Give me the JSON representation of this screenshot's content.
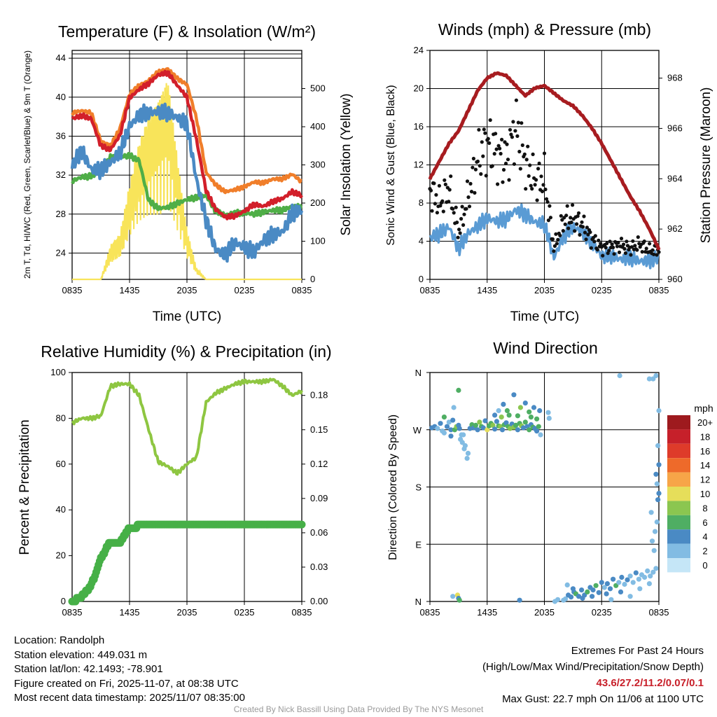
{
  "chart_data": [
    {
      "type": "line",
      "title": "Temperature (F) & Insolation (W/m²)",
      "xlabel": "Time (UTC)",
      "ylabel": "2m T, Td, HI/WC (Red, Green, Scarlet/Blue) & 9m T (Orange)",
      "y2label": "Solar Insolation (Yellow)",
      "x_ticks": [
        "0835",
        "1435",
        "2035",
        "0235",
        "0835"
      ],
      "y_ticks": [
        24,
        28,
        32,
        36,
        40,
        44
      ],
      "y2_ticks": [
        0,
        100,
        200,
        300,
        400,
        500
      ],
      "ylim": [
        21.3,
        44.8
      ],
      "y2lim": [
        0,
        600
      ],
      "x_hours": [
        0,
        1,
        2,
        3,
        4,
        5,
        6,
        7,
        8,
        9,
        10,
        11,
        12,
        13,
        14,
        15,
        16,
        17,
        18,
        19,
        20,
        21,
        22,
        23,
        24
      ],
      "series": [
        {
          "name": "2m T",
          "axis": "left",
          "color": "#d21f2a",
          "values": [
            37.8,
            38.1,
            37.8,
            35.0,
            34.6,
            36.1,
            39.9,
            40.8,
            41.4,
            42.3,
            42.5,
            41.2,
            40.0,
            35.6,
            30.4,
            28.5,
            27.7,
            27.8,
            28.3,
            29.0,
            28.8,
            29.3,
            29.6,
            30.3,
            29.9
          ]
        },
        {
          "name": "9m T",
          "axis": "left",
          "color": "#f07e2a",
          "values": [
            38.4,
            38.6,
            38.4,
            35.5,
            35.0,
            36.8,
            40.3,
            41.2,
            41.7,
            42.6,
            42.9,
            41.9,
            41.3,
            37.8,
            32.3,
            31.0,
            30.3,
            30.5,
            30.8,
            31.3,
            31.2,
            31.6,
            31.6,
            32.1,
            31.3
          ]
        },
        {
          "name": "HI/WC",
          "axis": "left",
          "color": "#4a8ac4",
          "values": [
            33.0,
            34.5,
            32.6,
            32.5,
            33.3,
            34.3,
            37.0,
            38.2,
            38.4,
            38.5,
            38.4,
            37.9,
            37.2,
            31.5,
            27.4,
            24.4,
            23.8,
            25.1,
            24.6,
            24.1,
            25.3,
            25.9,
            26.2,
            28.1,
            28.4
          ]
        },
        {
          "name": "Td",
          "axis": "left",
          "color": "#4fae47",
          "values": [
            31.4,
            31.8,
            31.9,
            32.5,
            33.8,
            33.9,
            34.0,
            33.5,
            29.4,
            28.6,
            28.7,
            29.1,
            29.5,
            29.7,
            29.9,
            28.3,
            27.9,
            28.1,
            28.1,
            28.0,
            28.2,
            28.4,
            28.4,
            28.8,
            28.7
          ]
        },
        {
          "name": "Solar Insolation",
          "axis": "right",
          "color": "#f8e45a",
          "values": [
            0,
            0,
            0,
            0,
            90,
            120,
            250,
            360,
            430,
            470,
            530,
            320,
            130,
            30,
            0,
            0,
            0,
            0,
            0,
            0,
            0,
            0,
            0,
            0,
            0
          ]
        }
      ]
    },
    {
      "type": "line",
      "title": "Winds (mph) & Pressure (mb)",
      "xlabel": "Time (UTC)",
      "ylabel": "Sonic Wind & Gust (Blue, Black)",
      "y2label": "Station Pressure (Maroon)",
      "x_ticks": [
        "0835",
        "1435",
        "2035",
        "0235",
        "0835"
      ],
      "y_ticks": [
        0,
        4,
        8,
        12,
        16,
        20,
        24
      ],
      "y2_ticks": [
        960,
        962,
        964,
        966,
        968
      ],
      "ylim": [
        0,
        24
      ],
      "y2lim": [
        960,
        969.1
      ],
      "x_hours": [
        0,
        1,
        2,
        3,
        4,
        5,
        6,
        7,
        8,
        9,
        10,
        11,
        12,
        13,
        14,
        15,
        16,
        17,
        18,
        19,
        20,
        21,
        22,
        23,
        24
      ],
      "series": [
        {
          "name": "Pressure",
          "axis": "right",
          "color": "#a71c20",
          "values": [
            964.0,
            964.7,
            965.4,
            965.9,
            966.7,
            967.5,
            968.0,
            968.2,
            968.1,
            967.7,
            967.3,
            967.6,
            967.7,
            967.4,
            967.1,
            966.9,
            966.5,
            966.0,
            965.4,
            964.7,
            964.0,
            963.3,
            962.7,
            962.0,
            961.2
          ]
        },
        {
          "name": "Sonic Wind",
          "axis": "left",
          "color": "#5a9bd4",
          "values": [
            4.4,
            4.8,
            5.5,
            3.2,
            4.8,
            5.6,
            6.4,
            6.1,
            6.3,
            7.3,
            6.8,
            6.0,
            5.8,
            2.3,
            4.5,
            5.5,
            5.0,
            3.8,
            2.4,
            2.5,
            2.1,
            2.3,
            1.9,
            2.0,
            2.3
          ]
        },
        {
          "name": "Gust",
          "axis": "left",
          "color": "#111111",
          "values": [
            9.5,
            7.9,
            9.6,
            4.9,
            8.6,
            12.6,
            14.4,
            13.3,
            12.4,
            16.2,
            12.3,
            10.3,
            10.6,
            3.2,
            6.3,
            6.4,
            5.7,
            4.2,
            3.3,
            3.4,
            3.6,
            3.2,
            3.7,
            3.0,
            3.1
          ]
        }
      ]
    },
    {
      "type": "line",
      "title": "Relative Humidity (%) & Precipitation (in)",
      "xlabel": "",
      "ylabel": "Percent & Precipitation",
      "x_ticks": [
        "0835",
        "1435",
        "2035",
        "0235",
        "0835"
      ],
      "y_ticks": [
        0,
        20,
        40,
        60,
        80,
        100
      ],
      "y2_ticks": [
        "0.00",
        "0.03",
        "0.06",
        "0.09",
        "0.12",
        "0.15",
        "0.18"
      ],
      "ylim": [
        0,
        100
      ],
      "y2lim": [
        0,
        0.2
      ],
      "x_hours": [
        0,
        1,
        2,
        3,
        4,
        5,
        6,
        7,
        8,
        9,
        10,
        11,
        12,
        13,
        14,
        15,
        16,
        17,
        18,
        19,
        20,
        21,
        22,
        23,
        24
      ],
      "series": [
        {
          "name": "Relative Humidity",
          "axis": "left",
          "color": "#8ec641",
          "values": [
            78,
            80,
            80,
            81,
            94,
            95,
            95,
            90,
            75,
            61,
            59,
            56,
            60,
            63,
            87,
            91,
            93,
            95,
            96,
            96,
            96,
            97,
            94,
            90,
            92
          ]
        },
        {
          "name": "Precipitation (scaled to % axis)",
          "axis": "left",
          "color": "#46b047",
          "values": [
            0,
            2,
            7,
            19,
            26,
            26,
            32,
            33,
            33,
            33,
            33,
            33,
            33,
            33,
            33,
            33,
            33,
            33,
            33,
            33,
            33,
            33,
            33,
            33,
            33
          ]
        }
      ]
    },
    {
      "type": "scatter",
      "title": "Wind Direction",
      "xlabel": "",
      "ylabel": "Direction (Colored By Speed)",
      "x_ticks": [
        "0835",
        "1435",
        "2035",
        "0235",
        "0835"
      ],
      "y_ticks": [
        "N",
        "E",
        "S",
        "W",
        "N"
      ],
      "ylim": [
        0,
        360
      ],
      "colorbar": {
        "title": "mph",
        "labels": [
          "20+",
          "18",
          "16",
          "14",
          "12",
          "10",
          "8",
          "6",
          "4",
          "2",
          "0"
        ],
        "colors": [
          "#9e1a1e",
          "#c6202a",
          "#de3b2a",
          "#ee6a2a",
          "#f7a548",
          "#e6de5a",
          "#8bc650",
          "#4fae63",
          "#4a8ac4",
          "#82bce3",
          "#c5e6f7"
        ]
      },
      "points": [
        [
          0.2,
          273,
          3
        ],
        [
          0.5,
          275,
          4
        ],
        [
          0.8,
          272,
          2
        ],
        [
          1.1,
          280,
          3
        ],
        [
          1.3,
          268,
          2
        ],
        [
          1.5,
          290,
          5
        ],
        [
          1.8,
          275,
          3
        ],
        [
          2.0,
          282,
          2
        ],
        [
          2.2,
          270,
          4
        ],
        [
          2.4,
          285,
          3
        ],
        [
          2.6,
          270,
          6
        ],
        [
          2.8,
          275,
          7
        ],
        [
          3.0,
          277,
          4
        ],
        [
          3.0,
          332,
          6
        ],
        [
          3.1,
          272,
          3
        ],
        [
          3.2,
          255,
          2
        ],
        [
          3.3,
          262,
          1
        ],
        [
          3.4,
          250,
          1
        ],
        [
          3.5,
          262,
          2
        ],
        [
          3.6,
          240,
          1
        ],
        [
          3.7,
          245,
          2
        ],
        [
          3.9,
          225,
          2
        ],
        [
          4.0,
          233,
          2
        ],
        [
          2.5,
          305,
          2
        ],
        [
          2.2,
          260,
          3
        ],
        [
          1.5,
          265,
          2
        ],
        [
          4.2,
          272,
          3
        ],
        [
          4.4,
          278,
          5
        ],
        [
          4.6,
          273,
          4
        ],
        [
          4.8,
          277,
          6
        ],
        [
          5.0,
          270,
          4
        ],
        [
          5.2,
          282,
          7
        ],
        [
          5.4,
          275,
          5
        ],
        [
          5.6,
          273,
          3
        ],
        [
          5.8,
          284,
          4
        ],
        [
          6.0,
          270,
          10
        ],
        [
          6.2,
          276,
          6
        ],
        [
          6.4,
          280,
          5
        ],
        [
          6.6,
          277,
          8
        ],
        [
          6.8,
          271,
          3
        ],
        [
          7.0,
          283,
          4
        ],
        [
          7.2,
          276,
          5
        ],
        [
          7.4,
          275,
          7
        ],
        [
          7.6,
          270,
          4
        ],
        [
          7.8,
          278,
          6
        ],
        [
          8.0,
          281,
          3
        ],
        [
          8.2,
          275,
          5
        ],
        [
          8.4,
          272,
          7
        ],
        [
          8.6,
          279,
          4
        ],
        [
          8.8,
          274,
          8
        ],
        [
          9.0,
          277,
          6
        ],
        [
          9.2,
          270,
          3
        ],
        [
          9.4,
          280,
          5
        ],
        [
          9.6,
          276,
          7
        ],
        [
          9.8,
          273,
          4
        ],
        [
          10.0,
          282,
          6
        ],
        [
          10.2,
          275,
          3
        ],
        [
          10.4,
          270,
          5
        ],
        [
          10.6,
          278,
          4
        ],
        [
          10.8,
          274,
          6
        ],
        [
          11.0,
          272,
          3
        ],
        [
          11.2,
          268,
          4
        ],
        [
          11.4,
          275,
          5
        ],
        [
          11.6,
          262,
          2
        ],
        [
          6.8,
          293,
          3
        ],
        [
          7.2,
          300,
          2
        ],
        [
          7.5,
          290,
          7
        ],
        [
          7.7,
          310,
          4
        ],
        [
          8.1,
          300,
          5
        ],
        [
          8.3,
          293,
          6
        ],
        [
          8.8,
          325,
          4
        ],
        [
          9.2,
          292,
          5
        ],
        [
          9.5,
          305,
          8
        ],
        [
          10.0,
          312,
          4
        ],
        [
          10.4,
          298,
          6
        ],
        [
          10.6,
          290,
          5
        ],
        [
          10.9,
          305,
          3
        ],
        [
          11.2,
          287,
          6
        ],
        [
          11.5,
          300,
          3
        ],
        [
          12.4,
          297,
          1
        ],
        [
          12.5,
          288,
          1
        ],
        [
          2.4,
          8,
          2
        ],
        [
          2.9,
          10,
          10
        ],
        [
          3.0,
          5,
          4
        ],
        [
          3.1,
          2,
          6
        ],
        [
          9.4,
          2,
          3
        ],
        [
          14.2,
          4,
          2
        ],
        [
          14.5,
          10,
          3
        ],
        [
          14.8,
          7,
          4
        ],
        [
          15.1,
          15,
          3
        ],
        [
          15.3,
          12,
          5
        ],
        [
          15.6,
          8,
          4
        ],
        [
          15.9,
          18,
          3
        ],
        [
          16.2,
          10,
          4
        ],
        [
          16.5,
          15,
          6
        ],
        [
          16.8,
          22,
          4
        ],
        [
          17.1,
          18,
          3
        ],
        [
          17.4,
          25,
          5
        ],
        [
          17.7,
          14,
          3
        ],
        [
          18.0,
          30,
          4
        ],
        [
          18.3,
          22,
          2
        ],
        [
          18.6,
          28,
          3
        ],
        [
          18.9,
          20,
          4
        ],
        [
          19.2,
          35,
          3
        ],
        [
          19.5,
          25,
          5
        ],
        [
          19.8,
          30,
          2
        ],
        [
          20.1,
          38,
          3
        ],
        [
          20.4,
          27,
          2
        ],
        [
          20.7,
          34,
          3
        ],
        [
          21.0,
          40,
          2
        ],
        [
          21.3,
          30,
          1
        ],
        [
          21.6,
          45,
          3
        ],
        [
          21.9,
          35,
          2
        ],
        [
          22.2,
          42,
          1
        ],
        [
          22.5,
          38,
          2
        ],
        [
          22.8,
          48,
          2
        ],
        [
          23.1,
          40,
          1
        ],
        [
          23.4,
          46,
          2
        ],
        [
          23.7,
          52,
          1
        ],
        [
          14.4,
          26,
          2
        ],
        [
          15.0,
          20,
          3
        ],
        [
          16.0,
          5,
          4
        ],
        [
          17.0,
          8,
          3
        ],
        [
          18.5,
          12,
          4
        ],
        [
          19.0,
          3,
          2
        ],
        [
          20.0,
          15,
          3
        ],
        [
          21.0,
          8,
          1
        ],
        [
          14.0,
          2,
          1
        ],
        [
          22.0,
          20,
          2
        ],
        [
          23.0,
          28,
          1
        ],
        [
          23.5,
          80,
          2
        ],
        [
          23.3,
          95,
          1
        ],
        [
          23.6,
          110,
          2
        ],
        [
          23.8,
          125,
          1
        ],
        [
          23.2,
          140,
          2
        ],
        [
          23.9,
          160,
          3
        ],
        [
          24.0,
          170,
          4
        ],
        [
          23.8,
          185,
          2
        ],
        [
          23.7,
          200,
          3
        ],
        [
          24.0,
          215,
          4
        ],
        [
          23.9,
          245,
          1
        ],
        [
          24.0,
          300,
          2
        ],
        [
          23.7,
          355,
          1
        ],
        [
          23.4,
          350,
          1
        ],
        [
          23.0,
          350,
          1
        ],
        [
          19.9,
          355,
          1
        ],
        [
          13.1,
          0,
          1
        ],
        [
          13.4,
          3,
          1
        ]
      ]
    }
  ],
  "info": {
    "location": "Location: Randolph",
    "elevation": "Station elevation: 449.031 m",
    "latlon": "Station lat/lon: 42.1493; -78.901",
    "created": "Figure created on Fri, 2025-11-07, at 08:38 UTC",
    "recent": "Most recent data timestamp: 2025/11/07 08:35:00"
  },
  "extremes": {
    "header": "Extremes For Past 24 Hours",
    "subheader": "(High/Low/Max Wind/Precipitation/Snow Depth)",
    "values": "43.6/27.2/11.2/0.07/0.1",
    "gust": "Max Gust: 22.7 mph On 11/06 at 1100 UTC"
  },
  "credit": "Created By Nick Bassill Using Data Provided By The NYS Mesonet"
}
